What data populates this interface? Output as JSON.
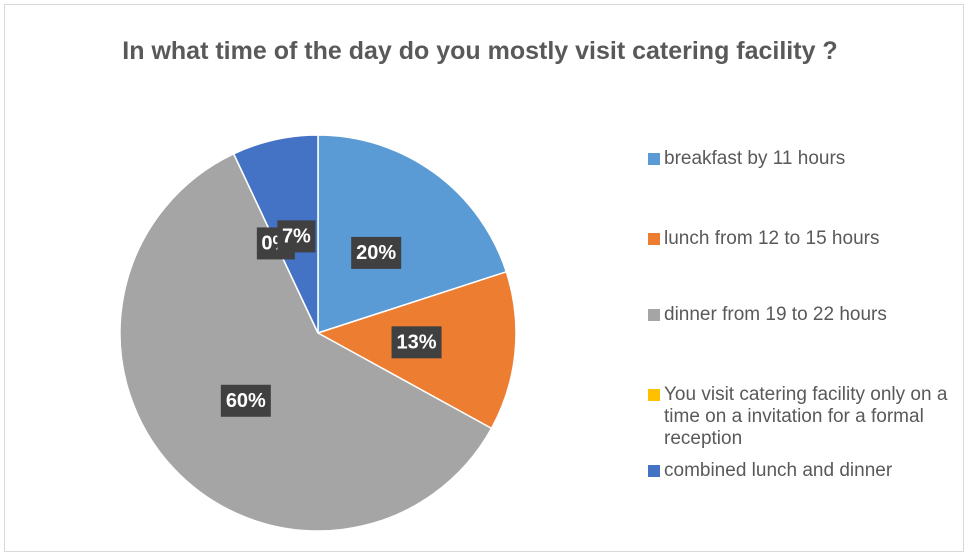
{
  "chart_data": {
    "type": "pie",
    "title": "In what time of the day do you mostly visit catering facility ?",
    "categories": [
      "breakfast by  11 hours",
      "lunch  from 12 to 15 hours",
      "dinner from 19 to 22 hours",
      "You visit  catering facility only on a time on a invitation for a formal reception",
      "combined lunch and dinner"
    ],
    "values": [
      20,
      13,
      60,
      0,
      7
    ],
    "value_labels": [
      "20%",
      "13%",
      "60%",
      "0%",
      "7%"
    ],
    "colors": [
      "#5b9bd5",
      "#ed7d31",
      "#a5a5a5",
      "#ffc000",
      "#4472c4"
    ],
    "legend": "right"
  }
}
